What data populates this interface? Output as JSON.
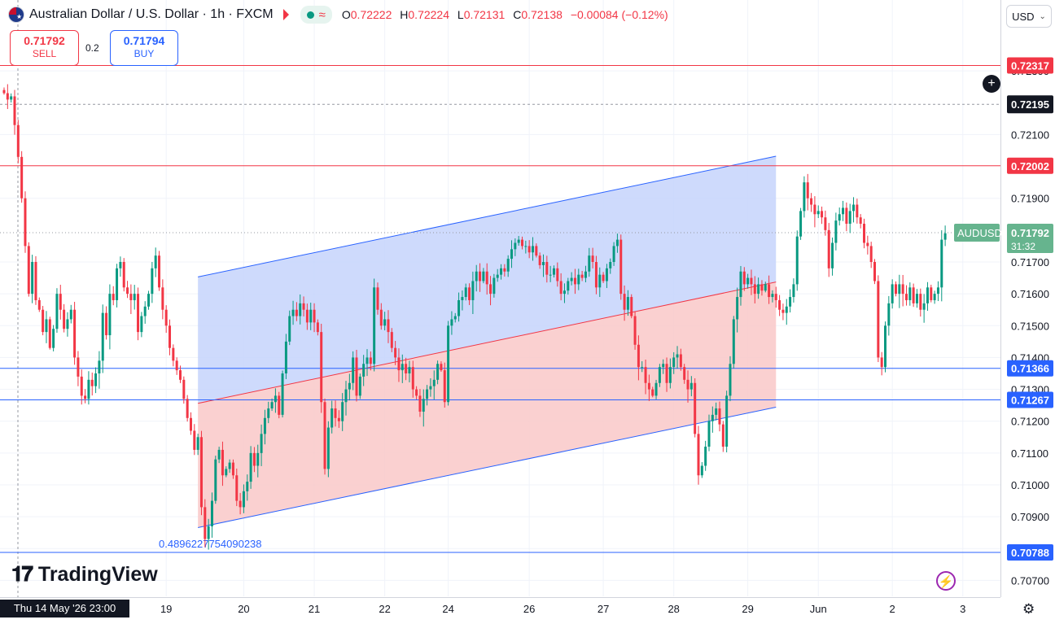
{
  "header": {
    "title": "Australian Dollar / U.S. Dollar · 1h · FXCM",
    "ohlc": [
      {
        "k": "O",
        "v": "0.72222"
      },
      {
        "k": "H",
        "v": "0.72224"
      },
      {
        "k": "L",
        "v": "0.72131"
      },
      {
        "k": "C",
        "v": "0.72138"
      }
    ],
    "change": "−0.00084 (−0.12%)"
  },
  "trade": {
    "sell_price": "0.71792",
    "sell_label": "SELL",
    "spread": "0.2",
    "buy_price": "0.71794",
    "buy_label": "BUY"
  },
  "currency": "USD",
  "brand": "TradingView",
  "cursor_date": "Thu 14 May '26   23:00",
  "colors": {
    "up": "#089981",
    "down": "#f23645",
    "resistance": "#f23645",
    "support": "#2962ff",
    "channel_upper_fill": "#c6d3fb",
    "channel_lower_fill": "#f9c8c8",
    "symbol_tag": "#66b48e"
  },
  "chart_data": {
    "type": "candlestick",
    "symbol": "AUDUSD",
    "timeframe": "1h",
    "ylim": [
      0.7065,
      0.724
    ],
    "y_ticks": [
      "0.72300",
      "0.72100",
      "0.71900",
      "0.71700",
      "0.71600",
      "0.71500",
      "0.71400",
      "0.71300",
      "0.71200",
      "0.71100",
      "0.71000",
      "0.70900",
      "0.70800",
      "0.70700"
    ],
    "x_ticks": [
      {
        "label": "19",
        "index": 46
      },
      {
        "label": "20",
        "index": 68
      },
      {
        "label": "21",
        "index": 88
      },
      {
        "label": "22",
        "index": 108
      },
      {
        "label": "24",
        "index": 126
      },
      {
        "label": "26",
        "index": 149
      },
      {
        "label": "27",
        "index": 170
      },
      {
        "label": "28",
        "index": 190
      },
      {
        "label": "29",
        "index": 211
      },
      {
        "label": "Jun",
        "index": 231
      },
      {
        "label": "2",
        "index": 252
      },
      {
        "label": "3",
        "index": 272
      }
    ],
    "closes": [
      0.7223,
      0.7221,
      0.7222,
      0.7213,
      0.7203,
      0.719,
      0.7175,
      0.716,
      0.717,
      0.7158,
      0.7155,
      0.7148,
      0.7152,
      0.7143,
      0.7149,
      0.716,
      0.7155,
      0.7149,
      0.7152,
      0.7155,
      0.714,
      0.7134,
      0.7128,
      0.7127,
      0.7133,
      0.7131,
      0.7135,
      0.7139,
      0.7154,
      0.7147,
      0.716,
      0.7158,
      0.7168,
      0.717,
      0.7162,
      0.716,
      0.7158,
      0.716,
      0.7148,
      0.7153,
      0.7156,
      0.716,
      0.7168,
      0.7172,
      0.7162,
      0.7155,
      0.715,
      0.7143,
      0.7139,
      0.7136,
      0.7133,
      0.7127,
      0.7121,
      0.7117,
      0.7111,
      0.7115,
      0.7093,
      0.7083,
      0.7087,
      0.7095,
      0.7108,
      0.7111,
      0.7103,
      0.7105,
      0.7107,
      0.7103,
      0.7095,
      0.7093,
      0.7098,
      0.7101,
      0.711,
      0.7106,
      0.711,
      0.7116,
      0.7121,
      0.7124,
      0.7126,
      0.7128,
      0.7122,
      0.7135,
      0.7145,
      0.7153,
      0.7155,
      0.7153,
      0.7157,
      0.7155,
      0.7151,
      0.7155,
      0.7151,
      0.7148,
      0.7126,
      0.7105,
      0.7118,
      0.7124,
      0.7121,
      0.712,
      0.7126,
      0.713,
      0.7132,
      0.714,
      0.7128,
      0.7134,
      0.7138,
      0.714,
      0.7138,
      0.7162,
      0.7155,
      0.715,
      0.7152,
      0.7148,
      0.7143,
      0.714,
      0.7136,
      0.7138,
      0.7135,
      0.7137,
      0.713,
      0.7128,
      0.7123,
      0.7127,
      0.713,
      0.7131,
      0.7133,
      0.7138,
      0.7136,
      0.7126,
      0.715,
      0.7152,
      0.7153,
      0.7158,
      0.7159,
      0.7162,
      0.7158,
      0.7164,
      0.7167,
      0.7164,
      0.7167,
      0.7163,
      0.716,
      0.7165,
      0.7166,
      0.7168,
      0.7167,
      0.7171,
      0.7174,
      0.7176,
      0.7177,
      0.7175,
      0.7175,
      0.7173,
      0.7175,
      0.7172,
      0.7169,
      0.717,
      0.7166,
      0.7166,
      0.7168,
      0.7164,
      0.716,
      0.7161,
      0.7164,
      0.7165,
      0.7163,
      0.7166,
      0.7165,
      0.7167,
      0.7172,
      0.717,
      0.7162,
      0.7166,
      0.7164,
      0.7168,
      0.717,
      0.7175,
      0.7177,
      0.716,
      0.7155,
      0.7159,
      0.7153,
      0.7144,
      0.7137,
      0.7137,
      0.7132,
      0.713,
      0.7128,
      0.7132,
      0.7137,
      0.7138,
      0.7132,
      0.7137,
      0.714,
      0.7141,
      0.7137,
      0.7133,
      0.713,
      0.7132,
      0.7116,
      0.7103,
      0.7106,
      0.7112,
      0.712,
      0.7122,
      0.7124,
      0.7119,
      0.7112,
      0.7128,
      0.7138,
      0.7152,
      0.7159,
      0.7167,
      0.7163,
      0.7165,
      0.7163,
      0.716,
      0.7163,
      0.7161,
      0.7163,
      0.7159,
      0.716,
      0.7158,
      0.7155,
      0.7154,
      0.7156,
      0.7159,
      0.7163,
      0.7178,
      0.7186,
      0.7195,
      0.719,
      0.7188,
      0.7185,
      0.7186,
      0.7184,
      0.718,
      0.7168,
      0.7176,
      0.7183,
      0.7185,
      0.7187,
      0.7182,
      0.7186,
      0.7188,
      0.7184,
      0.7182,
      0.7176,
      0.7175,
      0.717,
      0.7164,
      0.714,
      0.7137,
      0.715,
      0.7157,
      0.7163,
      0.716,
      0.7163,
      0.716,
      0.7158,
      0.7162,
      0.7157,
      0.716,
      0.7155,
      0.7157,
      0.7162,
      0.7158,
      0.716,
      0.7162,
      0.7177,
      0.7179
    ],
    "levels": [
      {
        "price": "0.72317",
        "value": 0.72317,
        "color": "red"
      },
      {
        "price": "0.72002",
        "value": 0.72002,
        "color": "red"
      },
      {
        "price": "0.71366",
        "value": 0.71366,
        "color": "blue"
      },
      {
        "price": "0.71267",
        "value": 0.71267,
        "color": "blue"
      },
      {
        "price": "0.70788",
        "value": 0.70788,
        "color": "blue"
      }
    ],
    "crosshair_price": "0.72195",
    "crosshair_value": 0.72195,
    "last_price": {
      "symbol": "AUDUSD",
      "price": "0.71792",
      "value": 0.71792,
      "countdown": "31:32"
    },
    "channel": {
      "start_index": 55,
      "end_index": 219,
      "upper_start": 0.71653,
      "upper_end": 0.72032,
      "middle_start": 0.71256,
      "middle_end": 0.71637,
      "lower_start": 0.70866,
      "lower_end": 0.71244,
      "label": "0.489622775409023​8"
    }
  }
}
